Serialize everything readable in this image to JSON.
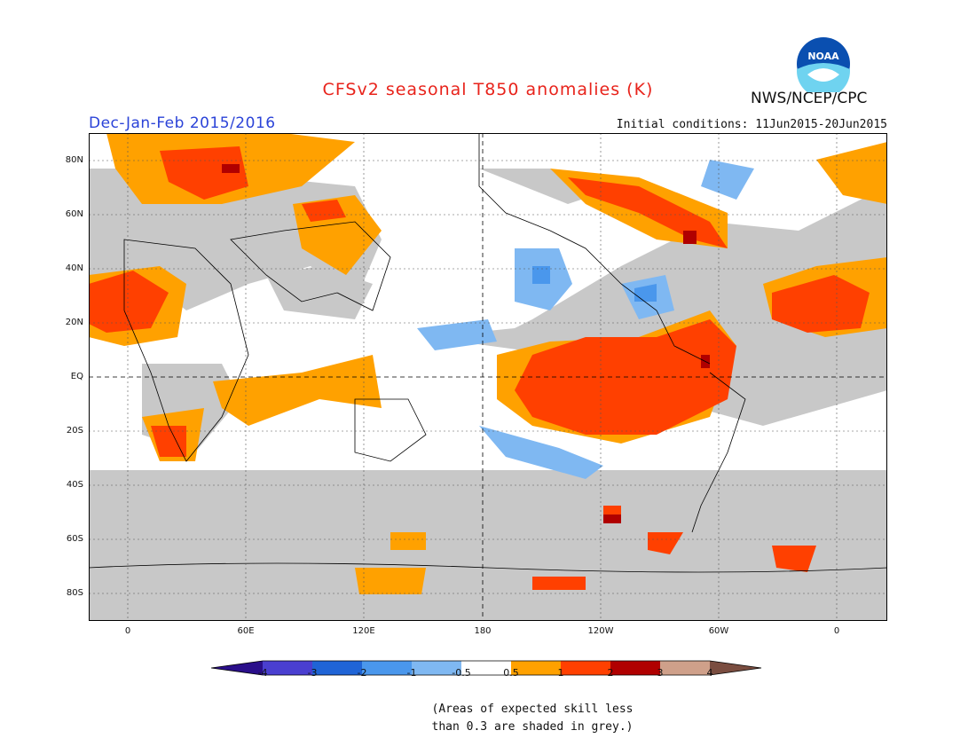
{
  "title": "CFSv2 seasonal T850 anomalies (K)",
  "period": "Dec-Jan-Feb 2015/2016",
  "initial_conditions": "Initial conditions: 11Jun2015-20Jun2015",
  "agency": "NWS/NCEP/CPC",
  "logo_text": "NOAA",
  "lat_labels": [
    "80N",
    "60N",
    "40N",
    "20N",
    "EQ",
    "20S",
    "40S",
    "60S",
    "80S"
  ],
  "lon_labels": [
    "0",
    "60E",
    "120E",
    "180",
    "120W",
    "60W",
    "0"
  ],
  "colorbar": {
    "labels": [
      "-4",
      "-3",
      "-2",
      "-1",
      "-0.5",
      "0.5",
      "1",
      "2",
      "3",
      "4"
    ],
    "colors": {
      "lt_m4": "#2a0f8a",
      "m4_m3": "#4a3fd0",
      "m3_m2": "#1f64d6",
      "m2_m1": "#4a97ec",
      "m1_m05": "#7fb8f2",
      "m05_05": "#ffffff",
      "p05_1": "#ffa100",
      "p1_2": "#ff4000",
      "p2_3": "#b00000",
      "p3_4": "#cfa08a",
      "gt_4": "#7a4d40"
    }
  },
  "grey_color": "#c8c8c8",
  "skill_note": [
    "(Areas of expected skill less",
    "than 0.3 are shaded in grey.)"
  ]
}
